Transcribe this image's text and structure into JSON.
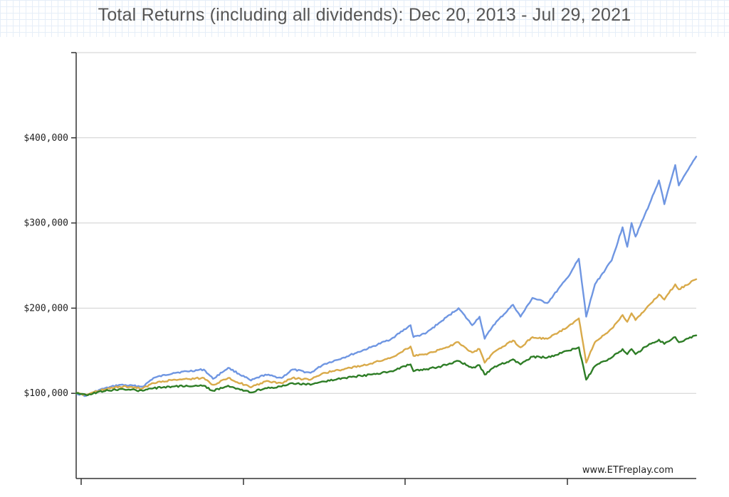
{
  "chart_data": {
    "type": "line",
    "title": "Total Returns (including all dividends): Dec 20, 2013 - Jul 29, 2021",
    "watermark": "www.ETFreplay.com",
    "xlim": [
      "2013-12-20",
      "2021-07-29"
    ],
    "ylim": [
      0,
      500000
    ],
    "y_ticks": [
      {
        "value": 100000,
        "label": "$100,000"
      },
      {
        "value": 200000,
        "label": "$200,000"
      },
      {
        "value": 300000,
        "label": "$300,000"
      },
      {
        "value": 400000,
        "label": "$400,000"
      }
    ],
    "grid": {
      "horizontal": true,
      "vertical": false
    },
    "legend": "none",
    "series": [
      {
        "color": "#6f96e2",
        "points": [
          [
            "2013-12-20",
            100000
          ],
          [
            "2014-02-03",
            97000
          ],
          [
            "2014-04-01",
            104000
          ],
          [
            "2014-07-01",
            110000
          ],
          [
            "2014-10-15",
            108000
          ],
          [
            "2014-12-01",
            118000
          ],
          [
            "2015-03-01",
            124000
          ],
          [
            "2015-07-15",
            128000
          ],
          [
            "2015-08-25",
            117000
          ],
          [
            "2015-11-01",
            130000
          ],
          [
            "2016-02-11",
            115000
          ],
          [
            "2016-04-15",
            122000
          ],
          [
            "2016-06-27",
            118000
          ],
          [
            "2016-08-15",
            128000
          ],
          [
            "2016-11-04",
            124000
          ],
          [
            "2017-01-01",
            134000
          ],
          [
            "2017-04-01",
            142000
          ],
          [
            "2017-08-01",
            154000
          ],
          [
            "2017-11-01",
            164000
          ],
          [
            "2018-01-26",
            180000
          ],
          [
            "2018-02-08",
            166000
          ],
          [
            "2018-04-02",
            170000
          ],
          [
            "2018-06-15",
            185000
          ],
          [
            "2018-08-29",
            200000
          ],
          [
            "2018-10-29",
            180000
          ],
          [
            "2018-12-01",
            190000
          ],
          [
            "2018-12-24",
            164000
          ],
          [
            "2019-02-01",
            180000
          ],
          [
            "2019-04-30",
            204000
          ],
          [
            "2019-06-03",
            190000
          ],
          [
            "2019-07-26",
            212000
          ],
          [
            "2019-10-01",
            206000
          ],
          [
            "2019-12-31",
            236000
          ],
          [
            "2020-02-19",
            258000
          ],
          [
            "2020-03-23",
            190000
          ],
          [
            "2020-05-01",
            228000
          ],
          [
            "2020-07-15",
            256000
          ],
          [
            "2020-09-02",
            295000
          ],
          [
            "2020-09-23",
            272000
          ],
          [
            "2020-10-12",
            300000
          ],
          [
            "2020-10-30",
            284000
          ],
          [
            "2020-12-31",
            322000
          ],
          [
            "2021-02-12",
            350000
          ],
          [
            "2021-03-08",
            322000
          ],
          [
            "2021-04-26",
            368000
          ],
          [
            "2021-05-12",
            344000
          ],
          [
            "2021-07-29",
            378000
          ]
        ]
      },
      {
        "color": "#d9aa4a",
        "points": [
          [
            "2013-12-20",
            100000
          ],
          [
            "2014-02-03",
            98000
          ],
          [
            "2014-04-01",
            103000
          ],
          [
            "2014-07-01",
            108000
          ],
          [
            "2014-10-15",
            106000
          ],
          [
            "2014-12-01",
            112000
          ],
          [
            "2015-03-01",
            116000
          ],
          [
            "2015-07-15",
            118000
          ],
          [
            "2015-08-25",
            110000
          ],
          [
            "2015-11-01",
            118000
          ],
          [
            "2016-02-11",
            107000
          ],
          [
            "2016-04-15",
            114000
          ],
          [
            "2016-06-27",
            112000
          ],
          [
            "2016-08-15",
            118000
          ],
          [
            "2016-11-04",
            116000
          ],
          [
            "2017-01-01",
            124000
          ],
          [
            "2017-04-01",
            128000
          ],
          [
            "2017-08-01",
            135000
          ],
          [
            "2017-11-01",
            142000
          ],
          [
            "2018-01-26",
            155000
          ],
          [
            "2018-02-08",
            144000
          ],
          [
            "2018-04-02",
            146000
          ],
          [
            "2018-06-15",
            152000
          ],
          [
            "2018-08-29",
            160000
          ],
          [
            "2018-10-29",
            148000
          ],
          [
            "2018-12-01",
            152000
          ],
          [
            "2018-12-24",
            136000
          ],
          [
            "2019-02-01",
            148000
          ],
          [
            "2019-04-30",
            162000
          ],
          [
            "2019-06-03",
            154000
          ],
          [
            "2019-07-26",
            166000
          ],
          [
            "2019-10-01",
            164000
          ],
          [
            "2019-12-31",
            178000
          ],
          [
            "2020-02-19",
            188000
          ],
          [
            "2020-03-23",
            136000
          ],
          [
            "2020-05-01",
            160000
          ],
          [
            "2020-07-15",
            176000
          ],
          [
            "2020-09-02",
            192000
          ],
          [
            "2020-09-23",
            184000
          ],
          [
            "2020-10-12",
            194000
          ],
          [
            "2020-10-30",
            186000
          ],
          [
            "2020-12-31",
            204000
          ],
          [
            "2021-02-12",
            216000
          ],
          [
            "2021-03-08",
            210000
          ],
          [
            "2021-04-26",
            228000
          ],
          [
            "2021-05-12",
            222000
          ],
          [
            "2021-07-29",
            234000
          ]
        ]
      },
      {
        "color": "#2e7d26",
        "points": [
          [
            "2013-12-20",
            100000
          ],
          [
            "2014-02-03",
            98000
          ],
          [
            "2014-04-01",
            102000
          ],
          [
            "2014-07-01",
            105000
          ],
          [
            "2014-10-15",
            103000
          ],
          [
            "2014-12-01",
            106000
          ],
          [
            "2015-03-01",
            108000
          ],
          [
            "2015-07-15",
            109000
          ],
          [
            "2015-08-25",
            103000
          ],
          [
            "2015-11-01",
            109000
          ],
          [
            "2016-02-11",
            101000
          ],
          [
            "2016-04-15",
            106000
          ],
          [
            "2016-06-27",
            108000
          ],
          [
            "2016-08-15",
            112000
          ],
          [
            "2016-11-04",
            110000
          ],
          [
            "2017-01-01",
            114000
          ],
          [
            "2017-04-01",
            118000
          ],
          [
            "2017-08-01",
            122000
          ],
          [
            "2017-11-01",
            126000
          ],
          [
            "2018-01-26",
            134000
          ],
          [
            "2018-02-08",
            126000
          ],
          [
            "2018-04-02",
            128000
          ],
          [
            "2018-06-15",
            132000
          ],
          [
            "2018-08-29",
            138000
          ],
          [
            "2018-10-29",
            130000
          ],
          [
            "2018-12-01",
            133000
          ],
          [
            "2018-12-24",
            122000
          ],
          [
            "2019-02-01",
            130000
          ],
          [
            "2019-04-30",
            140000
          ],
          [
            "2019-06-03",
            134000
          ],
          [
            "2019-07-26",
            143000
          ],
          [
            "2019-10-01",
            142000
          ],
          [
            "2019-12-31",
            150000
          ],
          [
            "2020-02-19",
            154000
          ],
          [
            "2020-03-23",
            116000
          ],
          [
            "2020-05-01",
            132000
          ],
          [
            "2020-07-15",
            142000
          ],
          [
            "2020-09-02",
            152000
          ],
          [
            "2020-09-23",
            146000
          ],
          [
            "2020-10-12",
            152000
          ],
          [
            "2020-10-30",
            146000
          ],
          [
            "2020-12-31",
            158000
          ],
          [
            "2021-02-12",
            163000
          ],
          [
            "2021-03-08",
            158000
          ],
          [
            "2021-04-26",
            166000
          ],
          [
            "2021-05-12",
            160000
          ],
          [
            "2021-07-29",
            168000
          ]
        ]
      }
    ]
  }
}
